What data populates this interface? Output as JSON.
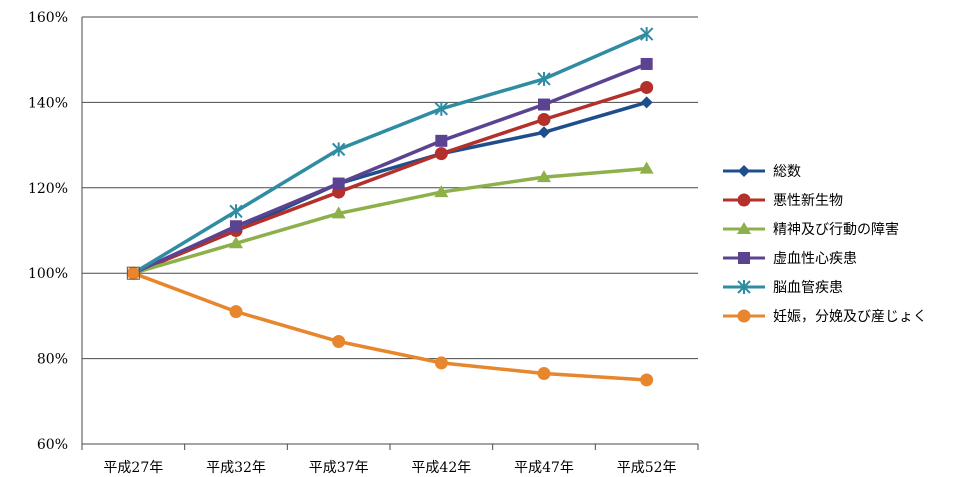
{
  "chart_data": {
    "type": "line",
    "title": "",
    "xlabel": "",
    "ylabel": "",
    "categories": [
      "平成27年",
      "平成32年",
      "平成37年",
      "平成42年",
      "平成47年",
      "平成52年"
    ],
    "y_ticks": [
      "60%",
      "80%",
      "100%",
      "120%",
      "140%",
      "160%"
    ],
    "ylim": [
      60,
      160
    ],
    "grid": true,
    "legend_position": "right",
    "series": [
      {
        "name": "総数",
        "color": "#1f4e8c",
        "marker": "diamond",
        "values": [
          100,
          110,
          121,
          128,
          133,
          140
        ]
      },
      {
        "name": "悪性新生物",
        "color": "#b3302b",
        "marker": "circle",
        "values": [
          100,
          110,
          119,
          128,
          136,
          143.5
        ]
      },
      {
        "name": "精神及び行動の障害",
        "color": "#8db04a",
        "marker": "triangle",
        "values": [
          100,
          107,
          114,
          119,
          122.5,
          124.5
        ]
      },
      {
        "name": "虚血性心疾患",
        "color": "#5c4392",
        "marker": "square",
        "values": [
          100,
          111,
          121,
          131,
          139.5,
          149
        ]
      },
      {
        "name": "脳血管疾患",
        "color": "#2f8ca3",
        "marker": "star",
        "values": [
          100,
          114.5,
          129,
          138.5,
          145.5,
          156
        ]
      },
      {
        "name": "妊娠，分娩及び産じょく",
        "color": "#e8862e",
        "marker": "circle",
        "values": [
          100,
          91,
          84,
          79,
          76.5,
          75
        ]
      }
    ]
  }
}
